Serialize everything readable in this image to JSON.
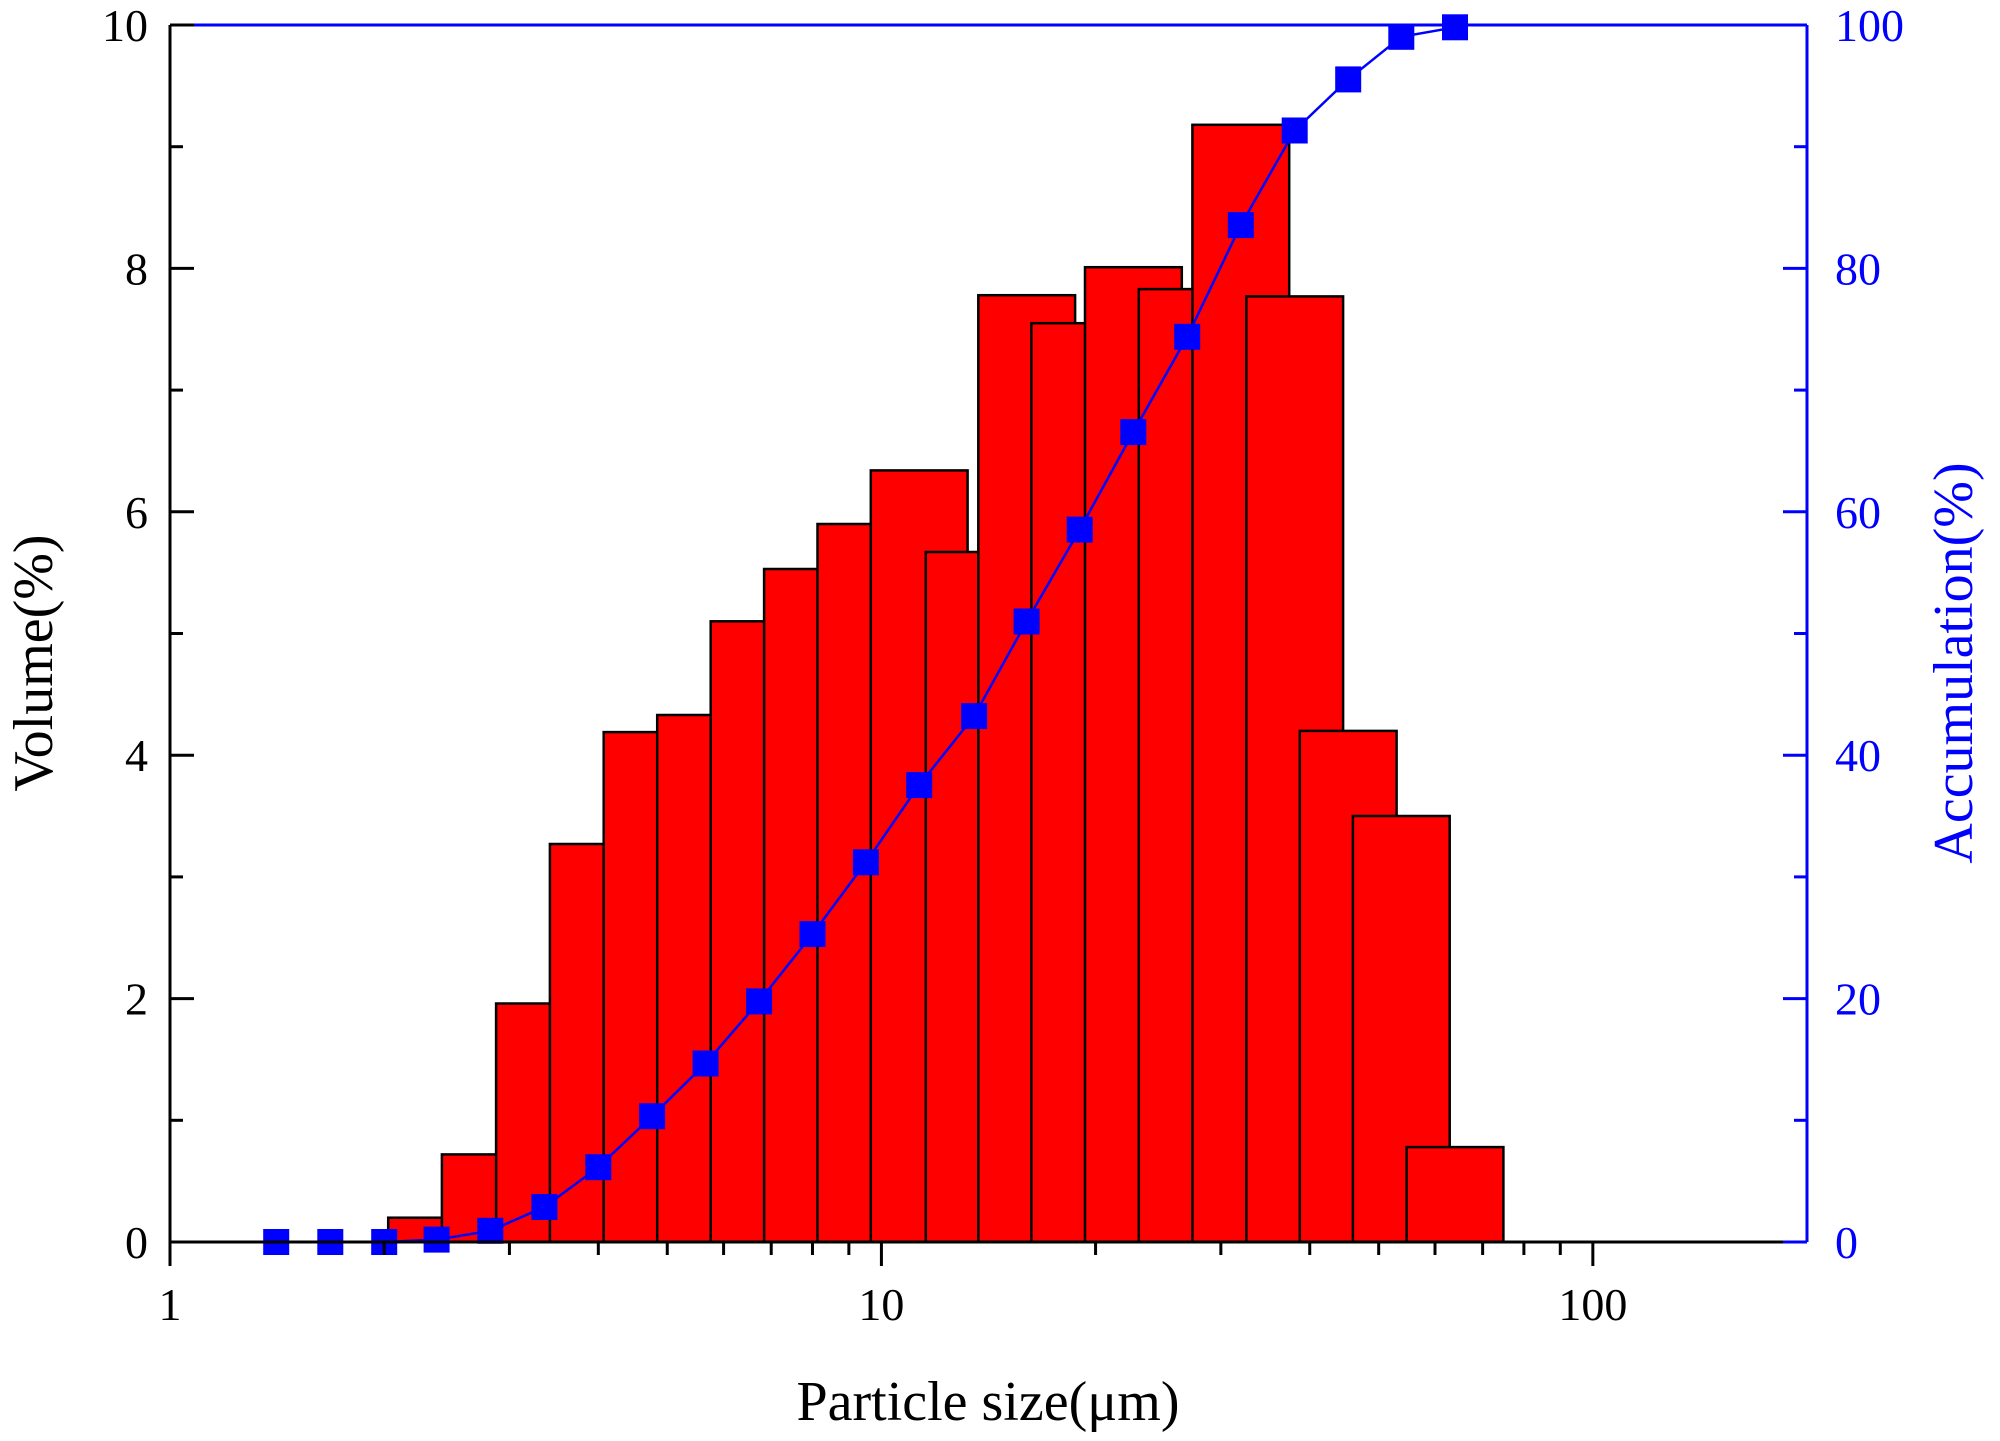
{
  "chart_data": {
    "type": "bar",
    "xlabel": "Particle size(μm)",
    "ylabel": "Volume(%)",
    "y2label": "Accumulation(%)",
    "xscale": "log",
    "xlim": [
      1,
      200
    ],
    "ylim": [
      0,
      10
    ],
    "y2lim": [
      0,
      100
    ],
    "x_ticks": [
      {
        "value": 1,
        "label": "1"
      },
      {
        "value": 10,
        "label": "10"
      },
      {
        "value": 100,
        "label": "100"
      }
    ],
    "y_ticks": [
      {
        "value": 0,
        "label": "0"
      },
      {
        "value": 2,
        "label": "2"
      },
      {
        "value": 4,
        "label": "4"
      },
      {
        "value": 6,
        "label": "6"
      },
      {
        "value": 8,
        "label": "8"
      },
      {
        "value": 10,
        "label": "10"
      }
    ],
    "y2_ticks": [
      {
        "value": 0,
        "label": "0"
      },
      {
        "value": 20,
        "label": "20"
      },
      {
        "value": 40,
        "label": "40"
      },
      {
        "value": 60,
        "label": "60"
      },
      {
        "value": 80,
        "label": "80"
      },
      {
        "value": 100,
        "label": "100"
      }
    ],
    "grid": false,
    "legend": "none",
    "bars": {
      "color": "#ff0000",
      "edge_color": "#000000",
      "x": [
        2.37,
        2.82,
        3.36,
        4.0,
        4.76,
        5.66,
        6.73,
        8.0,
        9.51,
        11.3,
        13.5,
        16.0,
        19.0,
        22.6,
        26.9,
        32.0,
        38.1,
        45.3,
        53.8,
        64.0
      ],
      "values": [
        0.2,
        0.72,
        1.96,
        3.27,
        4.19,
        4.33,
        5.1,
        5.53,
        5.9,
        6.34,
        5.67,
        7.78,
        7.55,
        8.01,
        7.83,
        9.18,
        7.77,
        4.2,
        3.5,
        0.78
      ]
    },
    "cumulative": {
      "color": "#0000ff",
      "marker": "square",
      "x": [
        1.41,
        1.68,
        2.0,
        2.37,
        2.82,
        3.36,
        4.0,
        4.76,
        5.66,
        6.73,
        8.0,
        9.51,
        11.3,
        13.5,
        16.0,
        19.0,
        22.6,
        26.9,
        32.0,
        38.1,
        45.3,
        53.8,
        64.0
      ],
      "values": [
        0,
        0,
        0,
        0.2,
        0.92,
        2.88,
        6.15,
        10.34,
        14.67,
        19.77,
        25.3,
        31.2,
        37.54,
        43.21,
        50.99,
        58.54,
        66.55,
        74.38,
        83.56,
        91.33,
        95.53,
        99.03,
        99.81
      ]
    }
  }
}
